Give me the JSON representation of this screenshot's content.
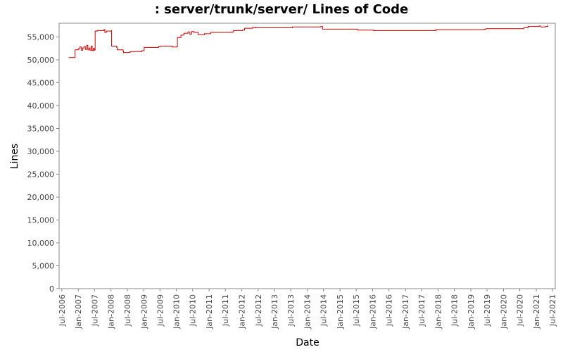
{
  "chart_data": {
    "type": "line",
    "title": ": server/trunk/server/ Lines of Code",
    "xlabel": "Date",
    "ylabel": "Lines",
    "ylim": [
      0,
      58000
    ],
    "xlim": [
      "2006-06-01",
      "2021-08-01"
    ],
    "grid": false,
    "legend": "none",
    "line_color": "#cc0000",
    "y_ticks": [
      0,
      5000,
      10000,
      15000,
      20000,
      25000,
      30000,
      35000,
      40000,
      45000,
      50000,
      55000
    ],
    "y_tick_labels": [
      "0",
      "5,000",
      "10,000",
      "15,000",
      "20,000",
      "25,000",
      "30,000",
      "35,000",
      "40,000",
      "45,000",
      "50,000",
      "55,000"
    ],
    "x_ticks": [
      "2006-07-01",
      "2007-01-01",
      "2007-07-01",
      "2008-01-01",
      "2008-07-01",
      "2009-01-01",
      "2009-07-01",
      "2010-01-01",
      "2010-07-01",
      "2011-01-01",
      "2011-07-01",
      "2012-01-01",
      "2012-07-01",
      "2013-01-01",
      "2013-07-01",
      "2014-01-01",
      "2014-07-01",
      "2015-01-01",
      "2015-07-01",
      "2016-01-01",
      "2016-07-01",
      "2017-01-01",
      "2017-07-01",
      "2018-01-01",
      "2018-07-01",
      "2019-01-01",
      "2019-07-01",
      "2020-01-01",
      "2020-07-01",
      "2021-01-01",
      "2021-07-01"
    ],
    "x_tick_labels": [
      "Jul-2006",
      "Jan-2007",
      "Jul-2007",
      "Jan-2008",
      "Jul-2008",
      "Jan-2009",
      "Jul-2009",
      "Jan-2010",
      "Jul-2010",
      "Jan-2011",
      "Jul-2011",
      "Jan-2012",
      "Jul-2012",
      "Jan-2013",
      "Jul-2013",
      "Jan-2014",
      "Jul-2014",
      "Jan-2015",
      "Jul-2015",
      "Jan-2016",
      "Jul-2016",
      "Jan-2017",
      "Jul-2017",
      "Jan-2018",
      "Jul-2018",
      "Jan-2019",
      "Jul-2019",
      "Jan-2020",
      "Jul-2020",
      "Jan-2021",
      "Jul-2021"
    ],
    "series": [
      {
        "points": [
          [
            "2006-09-15",
            50500
          ],
          [
            "2006-11-25",
            50500
          ],
          [
            "2006-11-26",
            52200
          ],
          [
            "2007-01-01",
            52400
          ],
          [
            "2007-01-20",
            52800
          ],
          [
            "2007-02-05",
            52100
          ],
          [
            "2007-02-20",
            52600
          ],
          [
            "2007-03-05",
            52900
          ],
          [
            "2007-03-20",
            52300
          ],
          [
            "2007-04-05",
            53200
          ],
          [
            "2007-04-18",
            52200
          ],
          [
            "2007-05-01",
            52600
          ],
          [
            "2007-05-12",
            52100
          ],
          [
            "2007-05-25",
            53000
          ],
          [
            "2007-06-05",
            52000
          ],
          [
            "2007-06-18",
            52500
          ],
          [
            "2007-06-28",
            52100
          ],
          [
            "2007-07-05",
            52200
          ],
          [
            "2007-07-08",
            56300
          ],
          [
            "2007-08-01",
            56400
          ],
          [
            "2007-10-15",
            56600
          ],
          [
            "2007-10-25",
            56000
          ],
          [
            "2007-11-10",
            56300
          ],
          [
            "2008-01-05",
            56400
          ],
          [
            "2008-01-08",
            53000
          ],
          [
            "2008-03-05",
            52700
          ],
          [
            "2008-03-10",
            52200
          ],
          [
            "2008-05-15",
            51900
          ],
          [
            "2008-05-20",
            51600
          ],
          [
            "2008-08-01",
            51800
          ],
          [
            "2008-12-10",
            52000
          ],
          [
            "2009-01-05",
            52700
          ],
          [
            "2009-06-15",
            52900
          ],
          [
            "2009-07-01",
            53000
          ],
          [
            "2009-11-15",
            52800
          ],
          [
            "2010-01-08",
            52900
          ],
          [
            "2010-01-12",
            54900
          ],
          [
            "2010-02-20",
            55400
          ],
          [
            "2010-03-25",
            55800
          ],
          [
            "2010-05-10",
            56100
          ],
          [
            "2010-06-01",
            55600
          ],
          [
            "2010-06-20",
            56200
          ],
          [
            "2010-07-15",
            56000
          ],
          [
            "2010-09-01",
            55500
          ],
          [
            "2010-11-10",
            55700
          ],
          [
            "2011-01-20",
            56000
          ],
          [
            "2011-09-15",
            56100
          ],
          [
            "2011-10-01",
            56400
          ],
          [
            "2012-01-10",
            56500
          ],
          [
            "2012-02-01",
            56900
          ],
          [
            "2012-05-01",
            57100
          ],
          [
            "2012-06-01",
            57000
          ],
          [
            "2013-07-01",
            57000
          ],
          [
            "2013-07-20",
            57200
          ],
          [
            "2014-06-01",
            57300
          ],
          [
            "2014-06-20",
            56700
          ],
          [
            "2015-07-01",
            56700
          ],
          [
            "2015-07-15",
            56500
          ],
          [
            "2016-01-01",
            56500
          ],
          [
            "2016-01-10",
            56400
          ],
          [
            "2017-12-01",
            56400
          ],
          [
            "2017-12-10",
            56600
          ],
          [
            "2019-06-01",
            56700
          ],
          [
            "2019-06-20",
            56800
          ],
          [
            "2020-07-01",
            56800
          ],
          [
            "2020-08-15",
            57000
          ],
          [
            "2020-10-01",
            57300
          ],
          [
            "2021-02-01",
            57400
          ],
          [
            "2021-02-20",
            57200
          ],
          [
            "2021-04-15",
            57300
          ],
          [
            "2021-05-10",
            57600
          ]
        ]
      }
    ]
  }
}
